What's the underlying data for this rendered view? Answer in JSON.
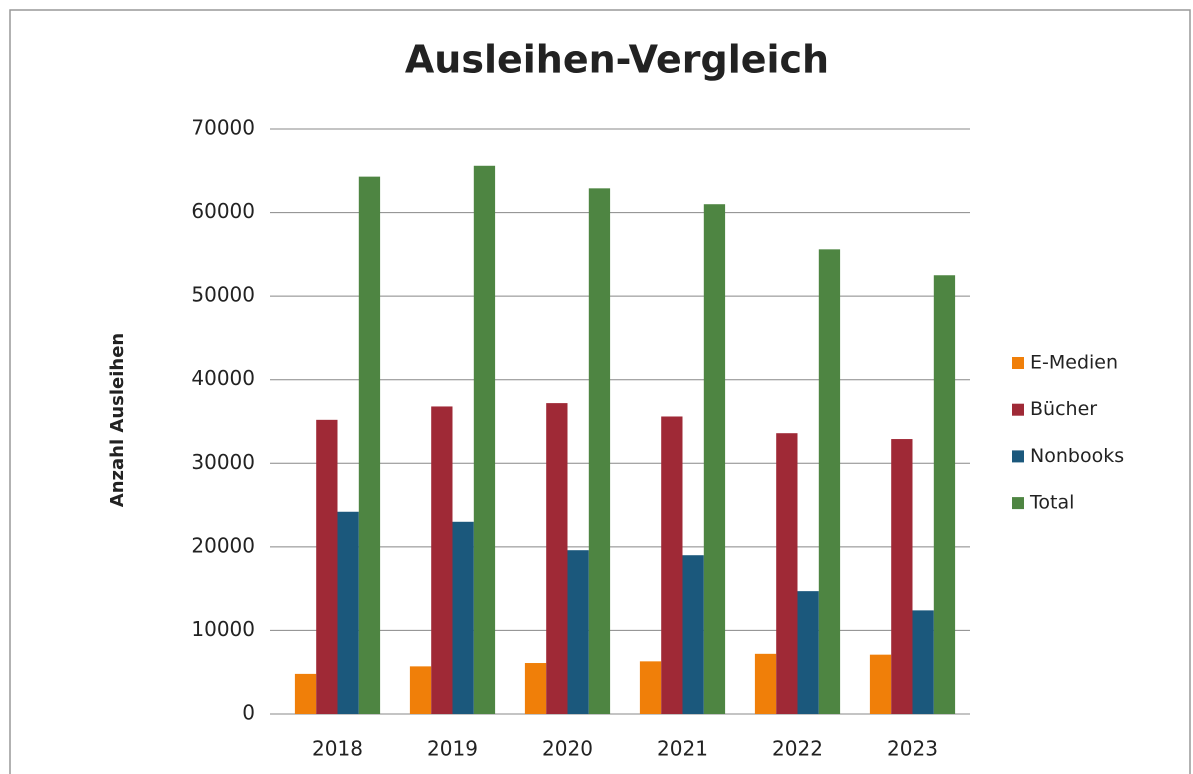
{
  "chart_data": {
    "type": "bar",
    "title": "Ausleihen-Vergleich",
    "y_label": "Anzahl Ausleihen",
    "categories": [
      "2018",
      "2019",
      "2020",
      "2021",
      "2022",
      "2023"
    ],
    "series": [
      {
        "name": "E-Medien",
        "color": "#f07f09",
        "values": [
          4800,
          5700,
          6100,
          6300,
          7200,
          7100
        ]
      },
      {
        "name": "Bücher",
        "color": "#9f2936",
        "values": [
          35200,
          36800,
          37200,
          35600,
          33600,
          32900
        ]
      },
      {
        "name": "Nonbooks",
        "color": "#1b587c",
        "values": [
          24200,
          23000,
          19600,
          19000,
          14700,
          12400
        ]
      },
      {
        "name": "Total",
        "color": "#4e8542",
        "values": [
          64300,
          65600,
          62900,
          61000,
          55600,
          52500
        ]
      }
    ],
    "ylim": [
      0,
      70000
    ],
    "yticks": [
      0,
      10000,
      20000,
      30000,
      40000,
      50000,
      60000,
      70000
    ],
    "grid": true,
    "legend": "right"
  }
}
